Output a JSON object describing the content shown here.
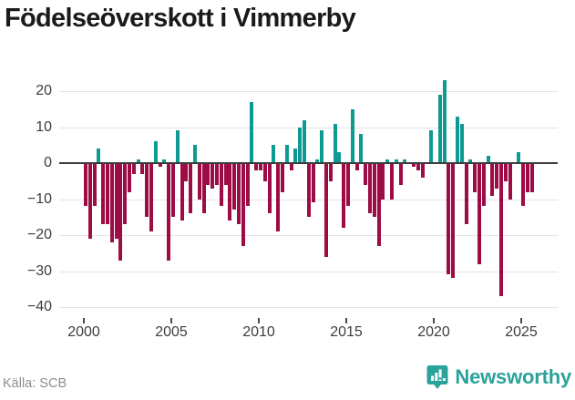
{
  "title": "Födelseöverskott i Vimmerby",
  "source": "Källa: SCB",
  "logo": {
    "text": "Newsworthy"
  },
  "colors": {
    "bar_positive": "#0e9a93",
    "bar_negative": "#9e0c46",
    "gridline": "#e4e4e4",
    "zero_line": "#3d3d3d",
    "axis_text": "#3d3d3d",
    "logo_teal": "#2ba39a"
  },
  "chart_data": {
    "type": "bar",
    "title": "Födelseöverskott i Vimmerby",
    "xlabel": "",
    "ylabel": "",
    "frequency": "quarterly",
    "start": "2000-Q1",
    "end": "2025-Q3",
    "x_ticks": [
      2000,
      2005,
      2010,
      2015,
      2020,
      2025
    ],
    "y_ticks": [
      20,
      10,
      0,
      -10,
      -20,
      -30,
      -40
    ],
    "ylim": [
      -40,
      25
    ],
    "grid": true,
    "legend": "none",
    "series_quarterly": [
      {
        "year": 2000,
        "values": [
          -12,
          -21,
          -12,
          4
        ]
      },
      {
        "year": 2001,
        "values": [
          -17,
          -17,
          -22,
          -21
        ]
      },
      {
        "year": 2002,
        "values": [
          -27,
          -17,
          -8,
          -3
        ]
      },
      {
        "year": 2003,
        "values": [
          1,
          -3,
          -15,
          -19
        ]
      },
      {
        "year": 2004,
        "values": [
          6,
          -1,
          1,
          -27
        ]
      },
      {
        "year": 2005,
        "values": [
          -15,
          9,
          -16,
          -5
        ]
      },
      {
        "year": 2006,
        "values": [
          -14,
          5,
          -10,
          -14
        ]
      },
      {
        "year": 2007,
        "values": [
          -6,
          -7,
          -6,
          -12
        ]
      },
      {
        "year": 2008,
        "values": [
          -6,
          -16,
          -13,
          -17
        ]
      },
      {
        "year": 2009,
        "values": [
          -23,
          -12,
          17,
          -2
        ]
      },
      {
        "year": 2010,
        "values": [
          -2,
          -5,
          -14,
          5
        ]
      },
      {
        "year": 2011,
        "values": [
          -19,
          -8,
          5,
          -2
        ]
      },
      {
        "year": 2012,
        "values": [
          4,
          10,
          12,
          -15
        ]
      },
      {
        "year": 2013,
        "values": [
          -11,
          1,
          9,
          -26
        ]
      },
      {
        "year": 2014,
        "values": [
          -5,
          11,
          3,
          -18
        ]
      },
      {
        "year": 2015,
        "values": [
          -12,
          15,
          -2,
          8
        ]
      },
      {
        "year": 2016,
        "values": [
          -6,
          -14,
          -15,
          -23
        ]
      },
      {
        "year": 2017,
        "values": [
          -10,
          1,
          -10,
          1
        ]
      },
      {
        "year": 2018,
        "values": [
          -6,
          1,
          0,
          -1
        ]
      },
      {
        "year": 2019,
        "values": [
          -2,
          -4,
          0,
          9
        ]
      },
      {
        "year": 2020,
        "values": [
          0,
          19,
          23,
          -31
        ]
      },
      {
        "year": 2021,
        "values": [
          -32,
          13,
          11,
          -17
        ]
      },
      {
        "year": 2022,
        "values": [
          1,
          -8,
          -28,
          -12
        ]
      },
      {
        "year": 2023,
        "values": [
          2,
          -9,
          -7,
          -37
        ]
      },
      {
        "year": 2024,
        "values": [
          -5,
          -10,
          0,
          3
        ]
      },
      {
        "year": 2025,
        "values": [
          -12,
          -8,
          -8
        ]
      }
    ]
  }
}
